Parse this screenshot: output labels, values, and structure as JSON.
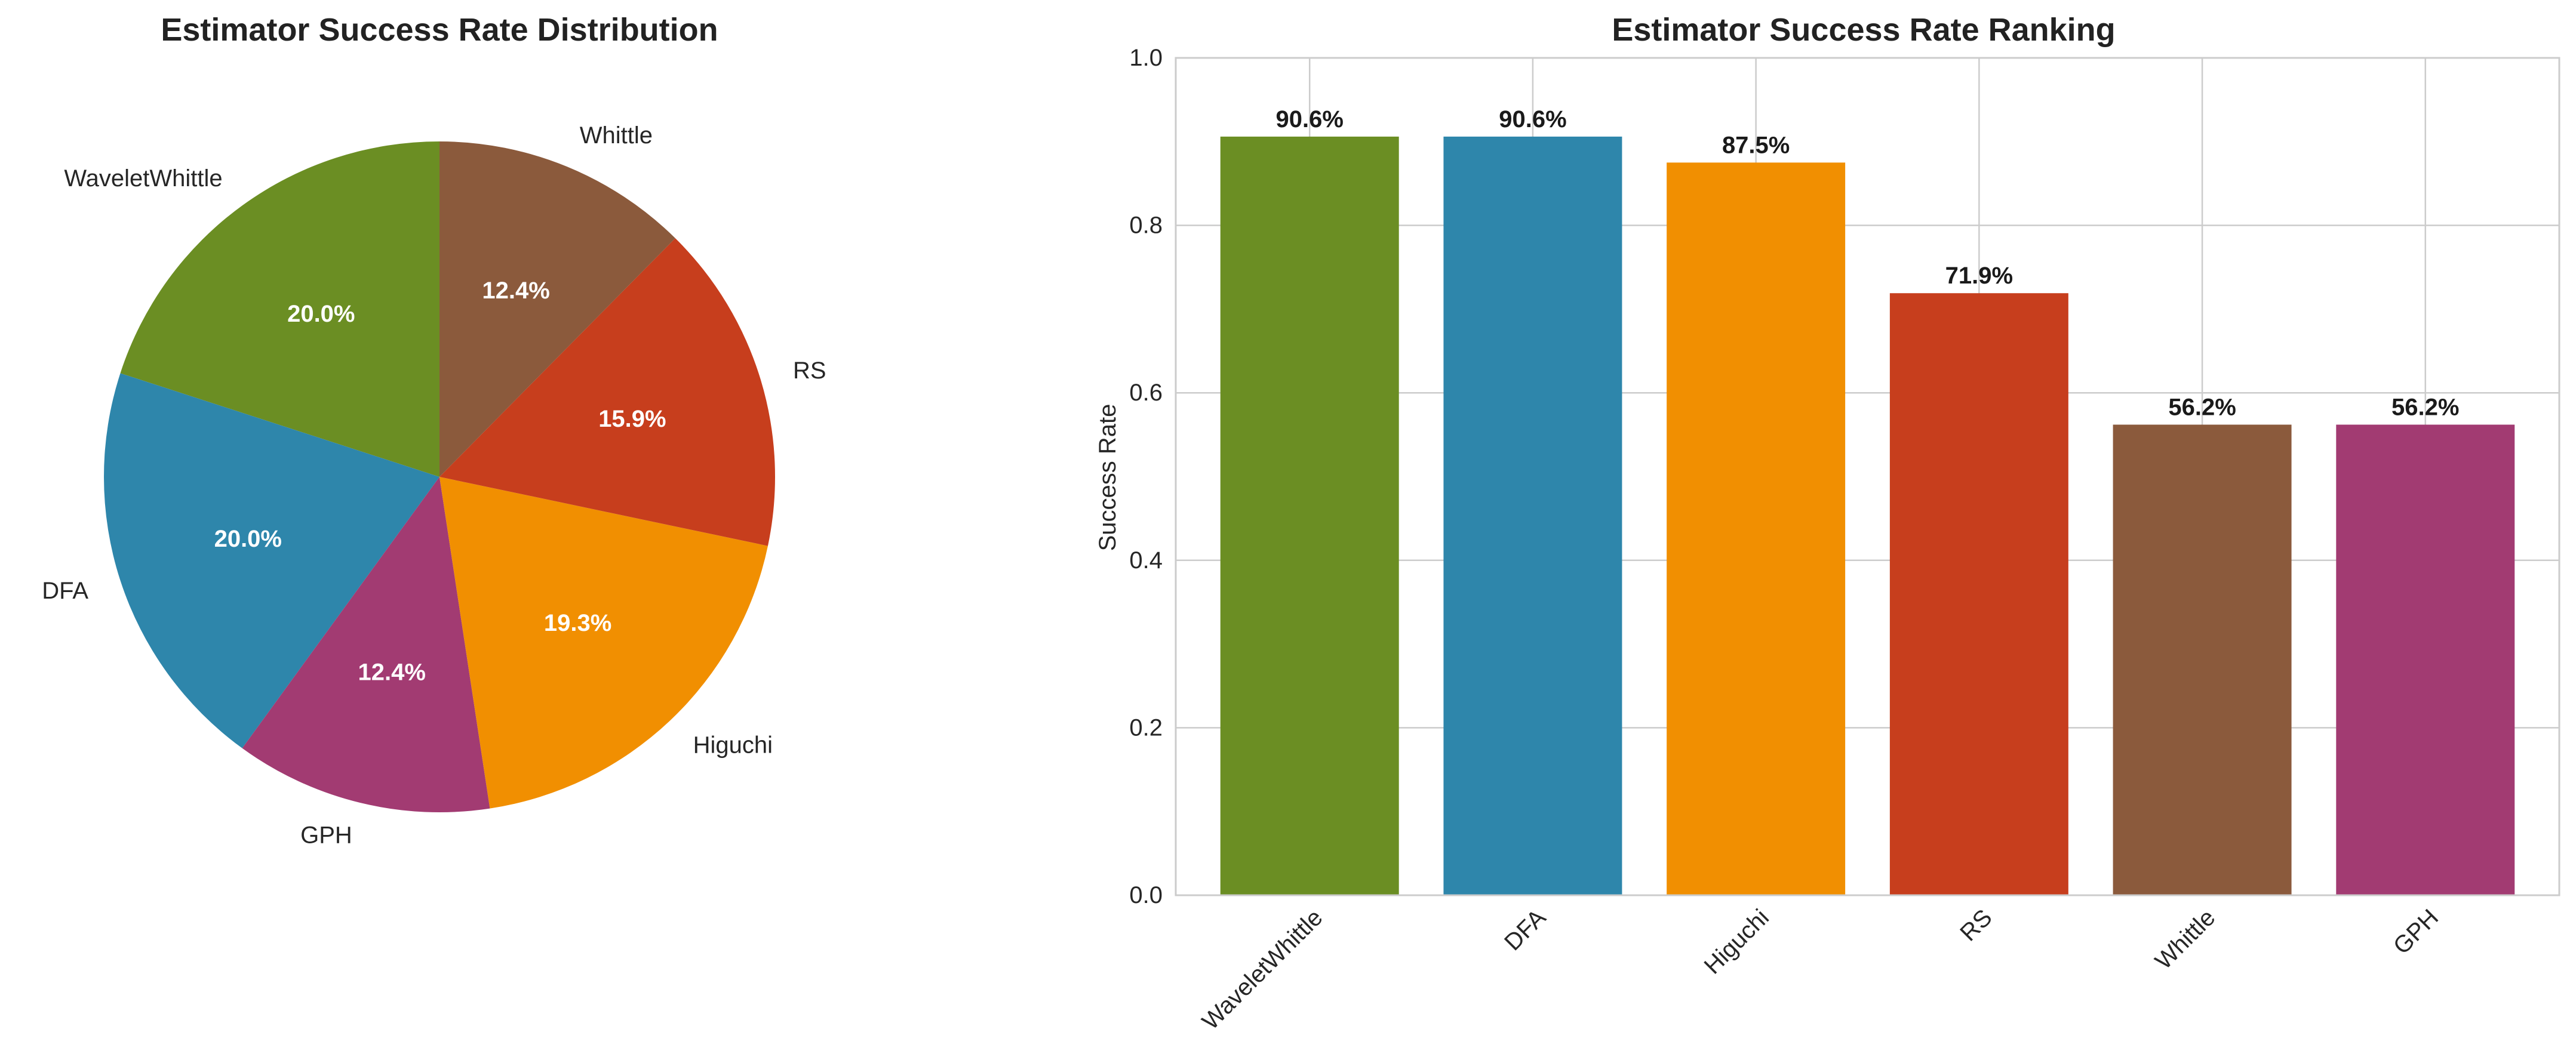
{
  "chart_data": [
    {
      "type": "pie",
      "title": "Estimator Success Rate Distribution",
      "start_angle_deg": 90,
      "direction": "counterclockwise",
      "slices": [
        {
          "label": "WaveletWhittle",
          "value": 20.0,
          "pct_label": "20.0%",
          "color": "#6B8E23"
        },
        {
          "label": "DFA",
          "value": 20.0,
          "pct_label": "20.0%",
          "color": "#2E86AB"
        },
        {
          "label": "GPH",
          "value": 12.4,
          "pct_label": "12.4%",
          "color": "#A23B72"
        },
        {
          "label": "Higuchi",
          "value": 19.3,
          "pct_label": "19.3%",
          "color": "#F18F01"
        },
        {
          "label": "RS",
          "value": 15.9,
          "pct_label": "15.9%",
          "color": "#C73E1D"
        },
        {
          "label": "Whittle",
          "value": 12.4,
          "pct_label": "12.4%",
          "color": "#8B5A3C"
        }
      ]
    },
    {
      "type": "bar",
      "title": "Estimator Success Rate Ranking",
      "xlabel": "",
      "ylabel": "Success Rate",
      "ylim": [
        0,
        1.0
      ],
      "yticks": [
        "0.0",
        "0.2",
        "0.4",
        "0.6",
        "0.8",
        "1.0"
      ],
      "ytick_values": [
        0,
        0.2,
        0.4,
        0.6,
        0.8,
        1.0
      ],
      "grid": true,
      "categories": [
        "WaveletWhittle",
        "DFA",
        "Higuchi",
        "RS",
        "Whittle",
        "GPH"
      ],
      "values": [
        0.906,
        0.906,
        0.875,
        0.719,
        0.562,
        0.562
      ],
      "value_labels": [
        "90.6%",
        "90.6%",
        "87.5%",
        "71.9%",
        "56.2%",
        "56.2%"
      ],
      "colors": [
        "#6B8E23",
        "#2E86AB",
        "#F18F01",
        "#C73E1D",
        "#8B5A3C",
        "#A23B72"
      ],
      "xtick_rotation_deg": 45
    }
  ]
}
